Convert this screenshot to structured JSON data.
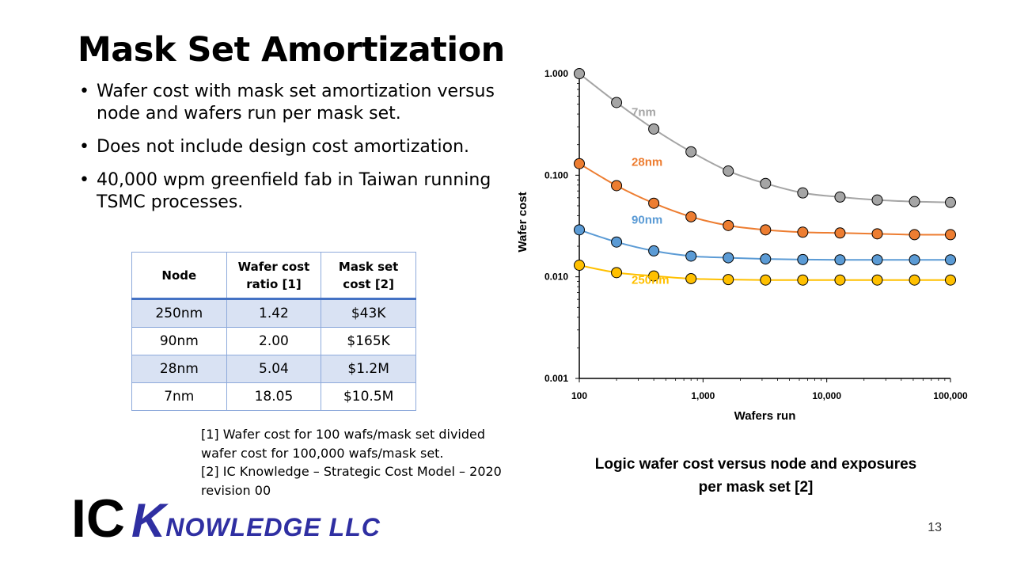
{
  "slide": {
    "title": "Mask Set Amortization",
    "bullets": [
      "Wafer cost with mask set amortization versus node and wafers run per mask set.",
      "Does not include design cost amortization.",
      "40,000 wpm greenfield fab in Taiwan running TSMC processes."
    ],
    "page_number": "13"
  },
  "table": {
    "headers": [
      "Node",
      "Wafer cost ratio [1]",
      "Mask set cost [2]"
    ],
    "rows": [
      [
        "250nm",
        "1.42",
        "$43K"
      ],
      [
        "90nm",
        "2.00",
        "$165K"
      ],
      [
        "28nm",
        "5.04",
        "$1.2M"
      ],
      [
        "7nm",
        "18.05",
        "$10.5M"
      ]
    ],
    "header_rule_color": "#4472c4",
    "shade_color": "#d9e2f3"
  },
  "footnotes": {
    "note1": "[1] Wafer cost for 100 wafs/mask set divided wafer cost for 100,000 wafs/mask set.",
    "note2": "[2] IC Knowledge – Strategic Cost Model – 2020 – revision 00"
  },
  "logo": {
    "ic": "IC",
    "k": "K",
    "rest": "NOWLEDGE LLC"
  },
  "caption": {
    "line1": "Logic wafer cost versus node and exposures",
    "line2": "per mask set [2]"
  },
  "chart_data": {
    "type": "scatter",
    "xlabel": "Wafers run",
    "ylabel": "Wafer cost",
    "x_scale": "log",
    "y_scale": "log",
    "xlim": [
      100,
      100000
    ],
    "ylim": [
      0.001,
      1.0
    ],
    "x_ticks": [
      {
        "value": 100,
        "label": "100"
      },
      {
        "value": 1000,
        "label": "1,000"
      },
      {
        "value": 10000,
        "label": "10,000"
      },
      {
        "value": 100000,
        "label": "100,000"
      }
    ],
    "y_ticks": [
      {
        "value": 0.001,
        "label": "0.001"
      },
      {
        "value": 0.01,
        "label": "0.010"
      },
      {
        "value": 0.1,
        "label": "0.100"
      },
      {
        "value": 1.0,
        "label": "1.000"
      }
    ],
    "grid": false,
    "legend": "inline labels",
    "x": [
      100,
      200,
      400,
      800,
      1600,
      3200,
      6400,
      12800,
      25600,
      51200,
      100000
    ],
    "series": [
      {
        "name": "7nm",
        "color": "#a5a5a5",
        "values": [
          1.0,
          0.52,
          0.285,
          0.17,
          0.11,
          0.083,
          0.067,
          0.061,
          0.057,
          0.055,
          0.054
        ]
      },
      {
        "name": "28nm",
        "color": "#ed7d31",
        "values": [
          0.13,
          0.079,
          0.053,
          0.039,
          0.032,
          0.029,
          0.0275,
          0.027,
          0.0265,
          0.026,
          0.026
        ]
      },
      {
        "name": "90nm",
        "color": "#5b9bd5",
        "values": [
          0.029,
          0.022,
          0.018,
          0.016,
          0.0154,
          0.015,
          0.0148,
          0.0147,
          0.0147,
          0.0147,
          0.0147
        ]
      },
      {
        "name": "250nm",
        "color": "#ffc000",
        "values": [
          0.013,
          0.011,
          0.0102,
          0.0096,
          0.0094,
          0.0093,
          0.0093,
          0.0093,
          0.0093,
          0.0093,
          0.0093
        ]
      }
    ]
  }
}
